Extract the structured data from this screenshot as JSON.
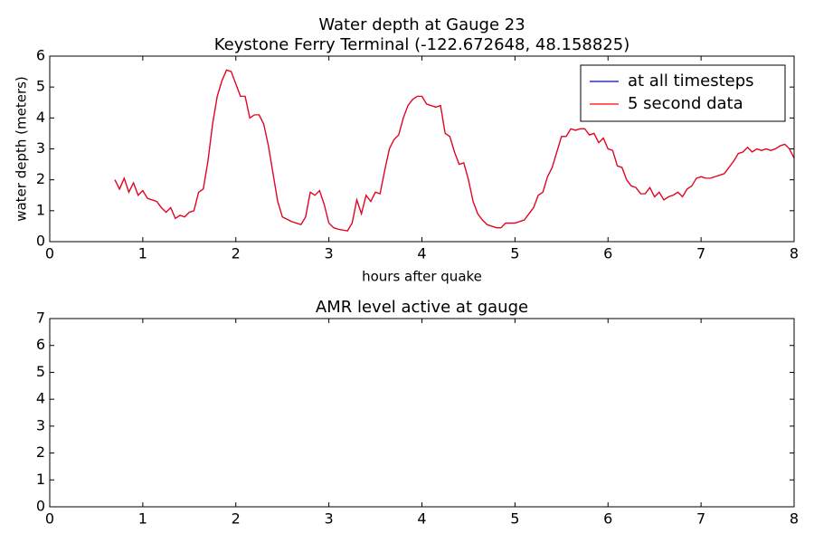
{
  "chart_data": [
    {
      "type": "line",
      "title": [
        "Water depth at Gauge 23",
        "Keystone Ferry Terminal  (-122.672648, 48.158825)"
      ],
      "xlabel": "hours after quake",
      "ylabel": "water depth (meters)",
      "xlim": [
        0,
        8
      ],
      "ylim": [
        0,
        6
      ],
      "xticks": [
        0,
        1,
        2,
        3,
        4,
        5,
        6,
        7,
        8
      ],
      "yticks": [
        0,
        1,
        2,
        3,
        4,
        5,
        6
      ],
      "legend": "upper right",
      "x": [
        0.7,
        0.75,
        0.8,
        0.85,
        0.9,
        0.95,
        1.0,
        1.05,
        1.1,
        1.15,
        1.2,
        1.25,
        1.3,
        1.35,
        1.4,
        1.45,
        1.5,
        1.55,
        1.6,
        1.65,
        1.7,
        1.75,
        1.8,
        1.85,
        1.9,
        1.95,
        2.0,
        2.05,
        2.1,
        2.15,
        2.2,
        2.25,
        2.3,
        2.35,
        2.4,
        2.45,
        2.5,
        2.6,
        2.7,
        2.75,
        2.8,
        2.85,
        2.9,
        2.95,
        3.0,
        3.05,
        3.1,
        3.2,
        3.25,
        3.3,
        3.35,
        3.4,
        3.45,
        3.5,
        3.55,
        3.6,
        3.65,
        3.7,
        3.75,
        3.8,
        3.85,
        3.9,
        3.95,
        4.0,
        4.05,
        4.1,
        4.15,
        4.2,
        4.25,
        4.3,
        4.35,
        4.4,
        4.45,
        4.5,
        4.55,
        4.6,
        4.65,
        4.7,
        4.8,
        4.85,
        4.9,
        5.0,
        5.05,
        5.1,
        5.15,
        5.2,
        5.25,
        5.3,
        5.35,
        5.4,
        5.45,
        5.5,
        5.55,
        5.6,
        5.65,
        5.7,
        5.75,
        5.8,
        5.85,
        5.9,
        5.95,
        6.0,
        6.05,
        6.1,
        6.15,
        6.2,
        6.25,
        6.3,
        6.35,
        6.4,
        6.45,
        6.5,
        6.55,
        6.6,
        6.65,
        6.7,
        6.75,
        6.8,
        6.85,
        6.9,
        6.95,
        7.0,
        7.05,
        7.1,
        7.2,
        7.25,
        7.3,
        7.35,
        7.4,
        7.45,
        7.5,
        7.55,
        7.6,
        7.65,
        7.7,
        7.75,
        7.8,
        7.85,
        7.9,
        7.95,
        8.0
      ],
      "series": [
        {
          "name": "at all timesteps",
          "color": "#0000ff",
          "values": [
            2.0,
            1.7,
            2.05,
            1.6,
            1.9,
            1.5,
            1.65,
            1.4,
            1.35,
            1.3,
            1.1,
            0.95,
            1.1,
            0.75,
            0.85,
            0.8,
            0.95,
            1.0,
            1.6,
            1.7,
            2.6,
            3.8,
            4.7,
            5.2,
            5.55,
            5.5,
            5.1,
            4.7,
            4.7,
            4.0,
            4.1,
            4.1,
            3.8,
            3.1,
            2.2,
            1.3,
            0.8,
            0.65,
            0.55,
            0.8,
            1.6,
            1.5,
            1.65,
            1.2,
            0.6,
            0.45,
            0.4,
            0.35,
            0.6,
            1.35,
            0.9,
            1.5,
            1.3,
            1.6,
            1.55,
            2.3,
            3.0,
            3.3,
            3.45,
            4.0,
            4.4,
            4.6,
            4.7,
            4.7,
            4.45,
            4.4,
            4.35,
            4.4,
            3.5,
            3.4,
            2.9,
            2.5,
            2.55,
            2.0,
            1.3,
            0.9,
            0.7,
            0.55,
            0.45,
            0.45,
            0.6,
            0.6,
            0.65,
            0.7,
            0.9,
            1.1,
            1.5,
            1.6,
            2.1,
            2.4,
            2.9,
            3.4,
            3.4,
            3.65,
            3.6,
            3.65,
            3.65,
            3.45,
            3.5,
            3.2,
            3.35,
            3.0,
            2.95,
            2.45,
            2.4,
            2.0,
            1.8,
            1.75,
            1.55,
            1.55,
            1.75,
            1.45,
            1.6,
            1.35,
            1.45,
            1.5,
            1.6,
            1.45,
            1.7,
            1.8,
            2.05,
            2.1,
            2.05,
            2.05,
            2.15,
            2.2,
            2.4,
            2.6,
            2.85,
            2.9,
            3.05,
            2.9,
            3.0,
            2.95,
            3.0,
            2.95,
            3.0,
            3.1,
            3.15,
            3.0,
            2.7
          ]
        },
        {
          "name": "5 second data",
          "color": "#ff0000",
          "values": [
            2.0,
            1.7,
            2.05,
            1.6,
            1.9,
            1.5,
            1.65,
            1.4,
            1.35,
            1.3,
            1.1,
            0.95,
            1.1,
            0.75,
            0.85,
            0.8,
            0.95,
            1.0,
            1.6,
            1.7,
            2.6,
            3.8,
            4.7,
            5.2,
            5.55,
            5.5,
            5.1,
            4.7,
            4.7,
            4.0,
            4.1,
            4.1,
            3.8,
            3.1,
            2.2,
            1.3,
            0.8,
            0.65,
            0.55,
            0.8,
            1.6,
            1.5,
            1.65,
            1.2,
            0.6,
            0.45,
            0.4,
            0.35,
            0.6,
            1.35,
            0.9,
            1.5,
            1.3,
            1.6,
            1.55,
            2.3,
            3.0,
            3.3,
            3.45,
            4.0,
            4.4,
            4.6,
            4.7,
            4.7,
            4.45,
            4.4,
            4.35,
            4.4,
            3.5,
            3.4,
            2.9,
            2.5,
            2.55,
            2.0,
            1.3,
            0.9,
            0.7,
            0.55,
            0.45,
            0.45,
            0.6,
            0.6,
            0.65,
            0.7,
            0.9,
            1.1,
            1.5,
            1.6,
            2.1,
            2.4,
            2.9,
            3.4,
            3.4,
            3.65,
            3.6,
            3.65,
            3.65,
            3.45,
            3.5,
            3.2,
            3.35,
            3.0,
            2.95,
            2.45,
            2.4,
            2.0,
            1.8,
            1.75,
            1.55,
            1.55,
            1.75,
            1.45,
            1.6,
            1.35,
            1.45,
            1.5,
            1.6,
            1.45,
            1.7,
            1.8,
            2.05,
            2.1,
            2.05,
            2.05,
            2.15,
            2.2,
            2.4,
            2.6,
            2.85,
            2.9,
            3.05,
            2.9,
            3.0,
            2.95,
            3.0,
            2.95,
            3.0,
            3.1,
            3.15,
            3.0,
            2.7
          ]
        }
      ]
    },
    {
      "type": "line",
      "title": [
        "AMR level active at gauge"
      ],
      "xlim": [
        0,
        8
      ],
      "ylim": [
        0,
        7
      ],
      "xticks": [
        0,
        1,
        2,
        3,
        4,
        5,
        6,
        7,
        8
      ],
      "yticks": [
        0,
        1,
        2,
        3,
        4,
        5,
        6,
        7
      ]
    }
  ]
}
